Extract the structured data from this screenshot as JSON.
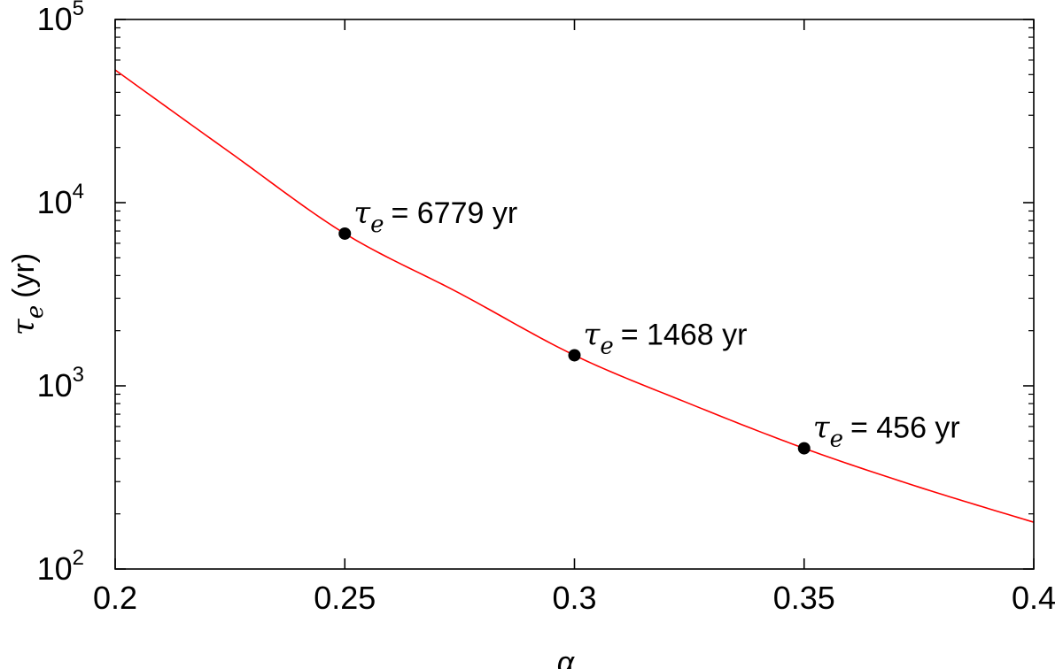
{
  "chart_data": {
    "type": "line",
    "scale": {
      "x": "linear",
      "y": "log10"
    },
    "xlim": [
      0.2,
      0.4
    ],
    "ylim": [
      100,
      100000
    ],
    "x_ticks": [
      "0.2",
      "0.25",
      "0.3",
      "0.35",
      "0.4"
    ],
    "x_tick_values": [
      0.2,
      0.25,
      0.3,
      0.35,
      0.4
    ],
    "y_ticks": [
      {
        "value": 100,
        "base": "10",
        "exp": "2"
      },
      {
        "value": 1000,
        "base": "10",
        "exp": "3"
      },
      {
        "value": 10000,
        "base": "10",
        "exp": "4"
      },
      {
        "value": 100000,
        "base": "10",
        "exp": "5"
      }
    ],
    "xlabel": "α",
    "ylabel": {
      "symbol": "τ",
      "subscript": "e",
      "unit": "(yr)"
    },
    "grid": false,
    "series": [
      {
        "color": "#ff0000",
        "x": [
          0.2,
          0.225,
          0.25,
          0.275,
          0.3,
          0.325,
          0.35,
          0.375,
          0.4
        ],
        "y": [
          53000,
          18800,
          6779,
          3200,
          1468,
          800,
          456,
          280,
          180
        ]
      }
    ],
    "markers": [
      {
        "x": 0.25,
        "y": 6779,
        "color": "#000000"
      },
      {
        "x": 0.3,
        "y": 1468,
        "color": "#000000"
      },
      {
        "x": 0.35,
        "y": 456,
        "color": "#000000"
      }
    ],
    "annotations": [
      {
        "symbol": "τ",
        "subscript": "e",
        "text": "= 6779 yr"
      },
      {
        "symbol": "τ",
        "subscript": "e",
        "text": "= 1468 yr"
      },
      {
        "symbol": "τ",
        "subscript": "e",
        "text": "= 456 yr"
      }
    ]
  }
}
